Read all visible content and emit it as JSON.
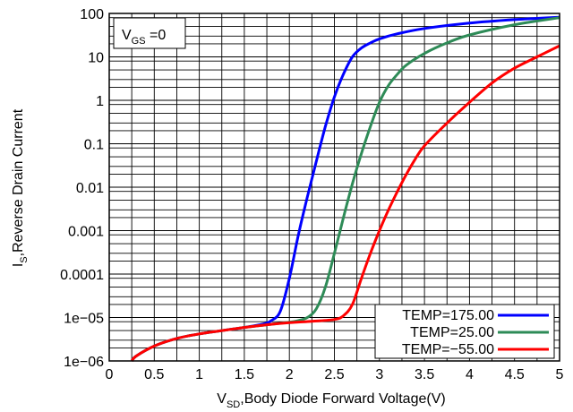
{
  "chart_data": {
    "type": "line",
    "annotation": {
      "main": "V",
      "sub": "GS",
      "rest": " =0"
    },
    "xlabel": {
      "main": "V",
      "sub": "SD",
      "rest": ",Body Diode Forward Voltage(V)"
    },
    "ylabel": {
      "main": "I",
      "sub": "S",
      "rest": ",Reverse Drain Current"
    },
    "xlim": [
      0,
      5
    ],
    "ylim": [
      1e-06,
      100
    ],
    "yscale": "log",
    "grid": true,
    "legend_position": "bottom-right",
    "x_ticks": [
      "0",
      "0.5",
      "1",
      "1.5",
      "2",
      "2.5",
      "3",
      "3.5",
      "4",
      "4.5",
      "5"
    ],
    "y_ticks": [
      "1e−06",
      "1e−05",
      "0.0001",
      "0.001",
      "0.01",
      "0.1",
      "1",
      "10",
      "100"
    ],
    "series": [
      {
        "name": "TEMP=175.00",
        "color": "#0000ff",
        "x": [
          0.25,
          0.3,
          0.5,
          0.75,
          1.0,
          1.25,
          1.5,
          1.7,
          1.8,
          1.9,
          2.0,
          2.1,
          2.2,
          2.3,
          2.4,
          2.5,
          2.6,
          2.7,
          2.8,
          2.9,
          3.0,
          3.2,
          3.5,
          4.0,
          4.5,
          5.0
        ],
        "y": [
          1e-06,
          1.3e-06,
          2.2e-06,
          3.3e-06,
          4.2e-06,
          5e-06,
          5.9e-06,
          7e-06,
          8.5e-06,
          1.4e-05,
          8e-05,
          0.0008,
          0.006,
          0.04,
          0.25,
          1.2,
          4.0,
          10.0,
          16.0,
          21.0,
          26.0,
          34.0,
          45.0,
          60.0,
          72.0,
          82.0
        ]
      },
      {
        "name": "TEMP=25.00",
        "color": "#2e8b57",
        "x": [
          0.25,
          0.3,
          0.5,
          0.75,
          1.0,
          1.25,
          1.5,
          1.75,
          2.0,
          2.1,
          2.2,
          2.3,
          2.4,
          2.5,
          2.6,
          2.7,
          2.8,
          2.9,
          3.0,
          3.1,
          3.2,
          3.3,
          3.5,
          3.75,
          4.0,
          4.5,
          5.0
        ],
        "y": [
          1e-06,
          1.3e-06,
          2.2e-06,
          3.3e-06,
          4.2e-06,
          5e-06,
          5.9e-06,
          6.8e-06,
          7.8e-06,
          8.5e-06,
          1e-05,
          1.6e-05,
          5e-05,
          0.0003,
          0.002,
          0.012,
          0.06,
          0.25,
          0.9,
          2.2,
          4.0,
          6.5,
          12.0,
          21.0,
          32.0,
          55.0,
          80.0
        ]
      },
      {
        "name": "TEMP=−55.00",
        "color": "#ff0000",
        "x": [
          0.25,
          0.3,
          0.5,
          0.75,
          1.0,
          1.25,
          1.5,
          1.75,
          2.0,
          2.25,
          2.5,
          2.6,
          2.7,
          2.8,
          2.9,
          3.0,
          3.1,
          3.2,
          3.3,
          3.4,
          3.5,
          3.75,
          4.0,
          4.25,
          4.5,
          4.75,
          5.0
        ],
        "y": [
          1e-06,
          1.3e-06,
          2.2e-06,
          3.3e-06,
          4.2e-06,
          5e-06,
          5.9e-06,
          6.8e-06,
          7.6e-06,
          8.2e-06,
          9e-06,
          1.1e-05,
          2e-05,
          8e-05,
          0.0003,
          0.001,
          0.003,
          0.008,
          0.02,
          0.045,
          0.09,
          0.3,
          0.9,
          2.5,
          5.5,
          10.0,
          18.0
        ]
      }
    ]
  }
}
